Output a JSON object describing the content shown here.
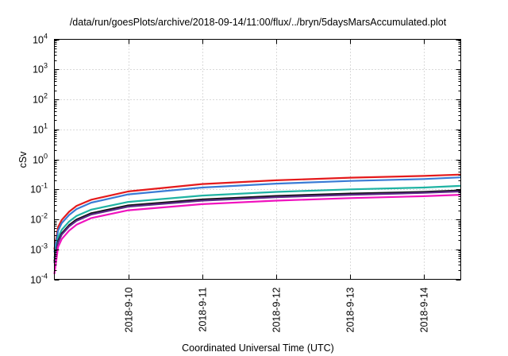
{
  "chart_data": {
    "type": "line",
    "title": "/data/run/goesPlots/archive/2018-09-14/11:00/flux/../bryn/5daysMarsAccumulated.plot",
    "xlabel": "Coordinated Universal Time (UTC)",
    "ylabel": "cSv",
    "y_scale": "log",
    "grid": true,
    "ylim": [
      0.0001,
      10000
    ],
    "y_ticks": [
      {
        "value": 0.0001,
        "base": "10",
        "exp": "-4"
      },
      {
        "value": 0.001,
        "base": "10",
        "exp": "-3"
      },
      {
        "value": 0.01,
        "base": "10",
        "exp": "-2"
      },
      {
        "value": 0.1,
        "base": "10",
        "exp": "-1"
      },
      {
        "value": 1,
        "base": "10",
        "exp": "0"
      },
      {
        "value": 10,
        "base": "10",
        "exp": "1"
      },
      {
        "value": 100,
        "base": "10",
        "exp": "2"
      },
      {
        "value": 1000,
        "base": "10",
        "exp": "3"
      },
      {
        "value": 10000,
        "base": "10",
        "exp": "4"
      }
    ],
    "xlim": [
      "2018-09-09T00:00",
      "2018-09-14T12:00"
    ],
    "x_ticks": [
      {
        "value": "2018-09-10T00:00",
        "label": "2018-9-10"
      },
      {
        "value": "2018-09-11T00:00",
        "label": "2018-9-11"
      },
      {
        "value": "2018-09-12T00:00",
        "label": "2018-9-12"
      },
      {
        "value": "2018-09-13T00:00",
        "label": "2018-9-13"
      },
      {
        "value": "2018-09-14T00:00",
        "label": "2018-9-14"
      }
    ],
    "x": [
      "2018-09-09T00:00",
      "2018-09-09T01:12",
      "2018-09-09T02:24",
      "2018-09-09T04:48",
      "2018-09-09T07:12",
      "2018-09-09T12:00",
      "2018-09-10T00:00",
      "2018-09-11T00:00",
      "2018-09-12T00:00",
      "2018-09-13T00:00",
      "2018-09-14T00:00",
      "2018-09-14T12:00"
    ],
    "series": [
      {
        "color": "#e41a1c",
        "values": [
          0.001,
          0.0055,
          0.0095,
          0.018,
          0.028,
          0.045,
          0.085,
          0.15,
          0.2,
          0.245,
          0.28,
          0.31
        ]
      },
      {
        "color": "#3a7bd5",
        "values": [
          0.0008,
          0.0042,
          0.0075,
          0.014,
          0.022,
          0.036,
          0.068,
          0.115,
          0.155,
          0.19,
          0.22,
          0.25
        ]
      },
      {
        "color": "#1fb3a3",
        "values": [
          0.0005,
          0.0025,
          0.0045,
          0.0085,
          0.013,
          0.021,
          0.038,
          0.062,
          0.082,
          0.1,
          0.115,
          0.13
        ]
      },
      {
        "color": "#111111",
        "values": [
          0.0004,
          0.0019,
          0.0034,
          0.0064,
          0.0098,
          0.016,
          0.029,
          0.046,
          0.06,
          0.072,
          0.082,
          0.092
        ]
      },
      {
        "color": "#5b2a86",
        "values": [
          0.00035,
          0.0017,
          0.0031,
          0.0058,
          0.0089,
          0.0145,
          0.0265,
          0.042,
          0.055,
          0.066,
          0.076,
          0.085
        ]
      },
      {
        "color": "#f012be",
        "values": [
          0.00015,
          0.0012,
          0.0022,
          0.0042,
          0.0066,
          0.011,
          0.02,
          0.032,
          0.042,
          0.051,
          0.059,
          0.066
        ]
      }
    ]
  }
}
